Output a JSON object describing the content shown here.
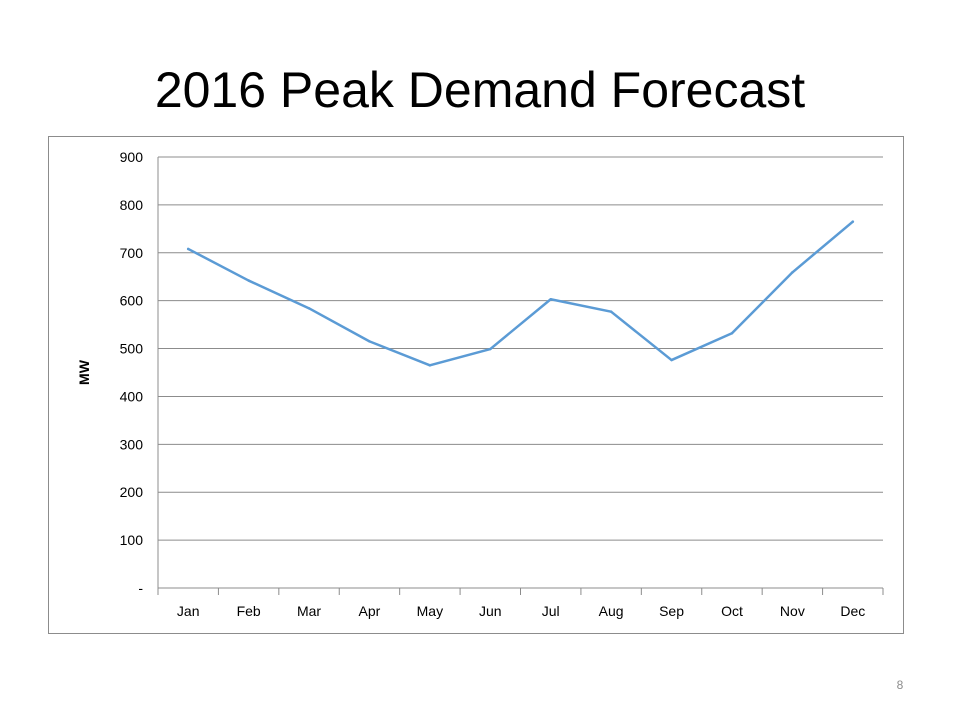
{
  "slide": {
    "title": "2016 Peak Demand Forecast",
    "page_number": "8"
  },
  "chart_data": {
    "type": "line",
    "title": "",
    "xlabel": "",
    "ylabel": "MW",
    "categories": [
      "Jan",
      "Feb",
      "Mar",
      "Apr",
      "May",
      "Jun",
      "Jul",
      "Aug",
      "Sep",
      "Oct",
      "Nov",
      "Dec"
    ],
    "series": [
      {
        "values": [
          708,
          642,
          584,
          515,
          465,
          499,
          603,
          577,
          476,
          532,
          659,
          765
        ],
        "color": "#5b9bd5"
      }
    ],
    "ylim": [
      0,
      900
    ],
    "yticks": [
      0,
      100,
      200,
      300,
      400,
      500,
      600,
      700,
      800,
      900
    ],
    "ytick_labels": [
      "-",
      "100",
      "200",
      "300",
      "400",
      "500",
      "600",
      "700",
      "800",
      "900"
    ],
    "grid": true,
    "legend": "none"
  }
}
